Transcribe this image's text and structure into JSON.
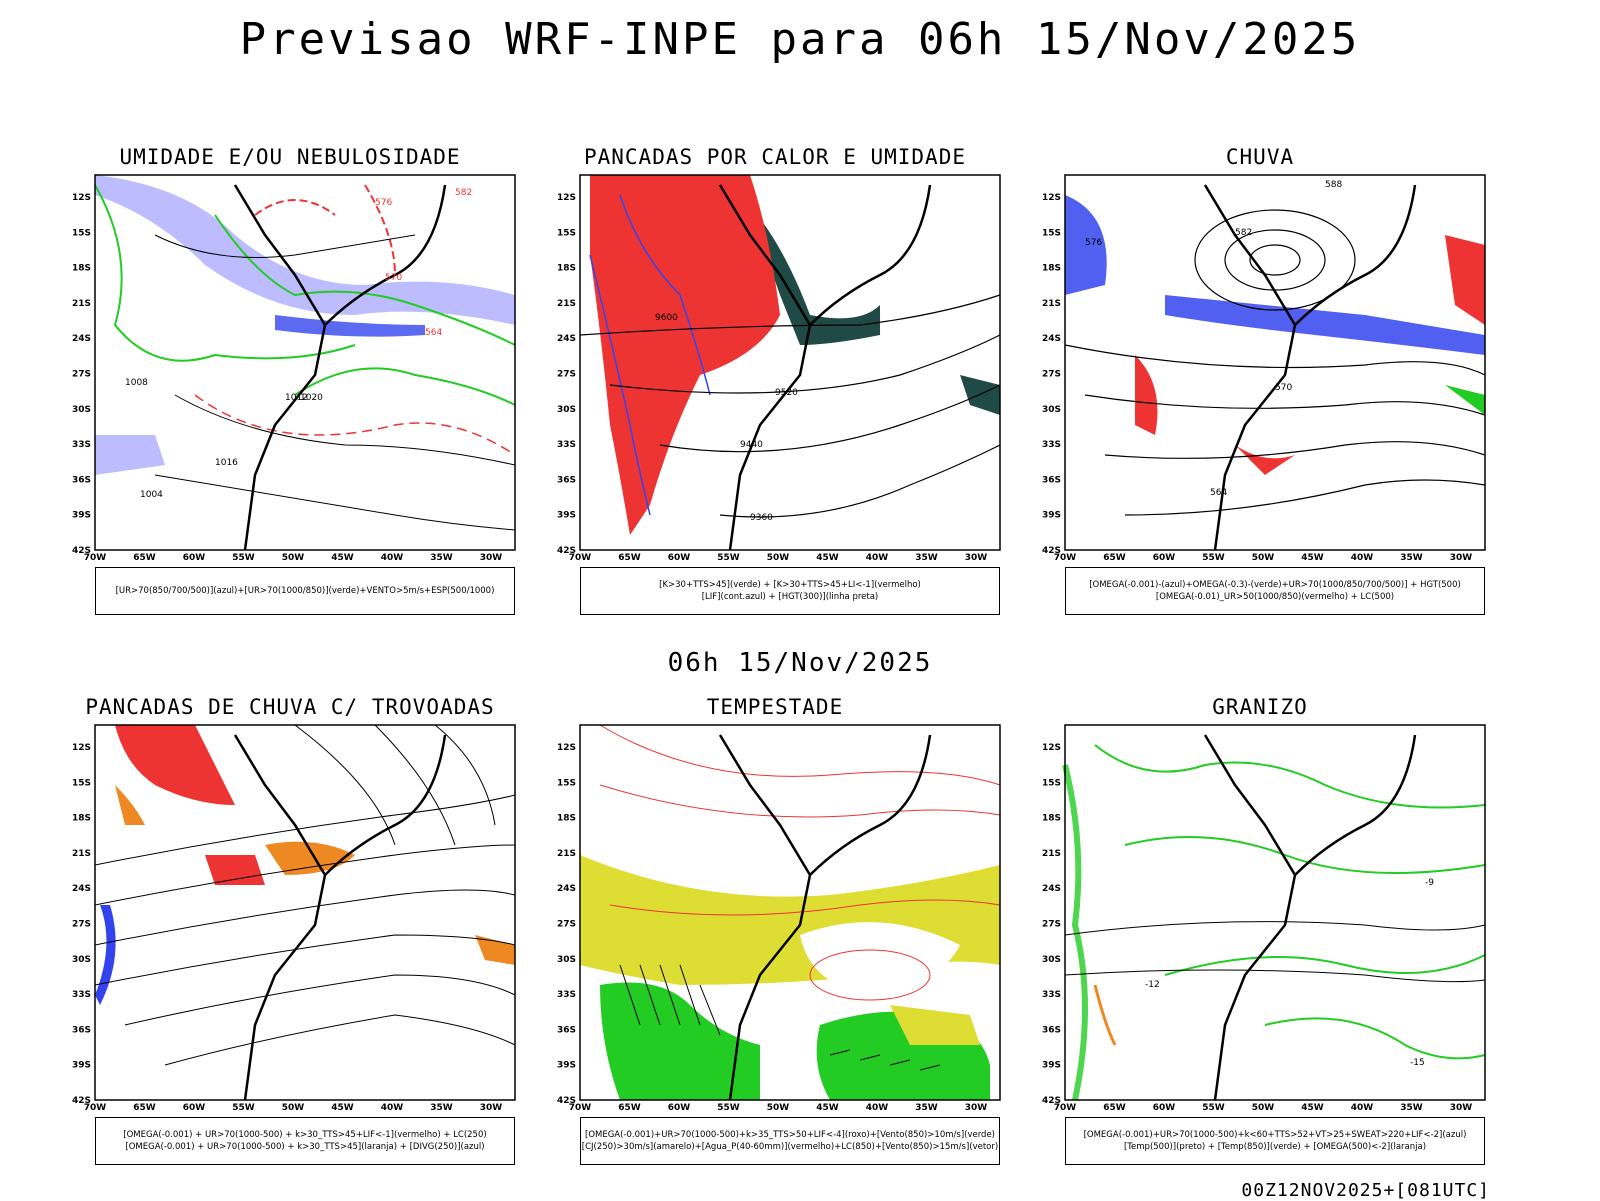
{
  "title": "Previsao WRF-INPE  para 06h 15/Nov/2025",
  "mid_title": "06h 15/Nov/2025",
  "footer": "00Z12NOV2025+[081UTC]",
  "axes": {
    "lat_labels": [
      "12S",
      "15S",
      "18S",
      "21S",
      "24S",
      "27S",
      "30S",
      "33S",
      "36S",
      "39S",
      "42S"
    ],
    "lon_labels": [
      "70W",
      "65W",
      "60W",
      "55W",
      "50W",
      "45W",
      "40W",
      "35W",
      "30W"
    ]
  },
  "panels": [
    {
      "title": "UMIDADE E/OU NEBULOSIDADE",
      "legend": [
        "[UR>70(850/700/500)](azul)+[UR>70(1000/850)](verde)+VENTO>5m/s+ESP(500/1000)"
      ]
    },
    {
      "title": "PANCADAS POR CALOR E UMIDADE",
      "legend": [
        "[K>30+TTS>45](verde) + [K>30+TTS>45+LI<-1](vermelho)",
        "[LIF](cont.azul) + [HGT(300)](linha preta)"
      ]
    },
    {
      "title": "CHUVA",
      "legend": [
        "[OMEGA(-0.001)-(azul)+OMEGA(-0.3)-(verde)+UR>70(1000/850/700/500)] + HGT(500)",
        "[OMEGA(-0.01)_UR>50(1000/850)(vermelho) + LC(500)"
      ]
    },
    {
      "title": "PANCADAS DE CHUVA C/ TROVOADAS",
      "legend": [
        "[OMEGA(-0.001) + UR>70(1000-500) + k>30_TTS>45+LIF<-1](vermelho) + LC(250)",
        "[OMEGA(-0.001) + UR>70(1000-500) + k>30_TTS>45](laranja) + [DIVG(250)](azul)"
      ]
    },
    {
      "title": "TEMPESTADE",
      "legend": [
        "[OMEGA(-0.001)+UR>70(1000-500)+k>35_TTS>50+LIF<-4](roxo)+[Vento(850)>10m/s](verde)",
        "[CJ(250)>30m/s](amarelo)+[Agua_P(40-60mm)](vermelho)+LC(850)+[Vento(850)>15m/s](vetor)"
      ]
    },
    {
      "title": "GRANIZO",
      "legend": [
        "[OMEGA(-0.001)+UR>70(1000-500)+k<60+TTS>52+VT>25+SWEAT>220+LIF<-2](azul)",
        "[Temp(500)](preto) + [Temp(850)](verde) + [OMEGA(500)<-2](laranja)"
      ]
    }
  ],
  "contour_labels": {
    "p1": [
      "1012",
      "1016",
      "1020",
      "1008",
      "1004",
      "576",
      "570",
      "564",
      "582"
    ],
    "p2": [
      "9600",
      "9520",
      "9440",
      "9360"
    ],
    "p3": [
      "582",
      "576",
      "570",
      "564",
      "588"
    ],
    "p6": [
      "-15",
      "-12",
      "-9"
    ]
  },
  "colors": {
    "blue": "#3344ee",
    "lightblue": "#a0a0ff",
    "green": "#22cc22",
    "red": "#ee3333",
    "orange": "#ee8822",
    "yellow": "#dddd33",
    "darkteal": "#1f4a45",
    "black": "#000000"
  }
}
